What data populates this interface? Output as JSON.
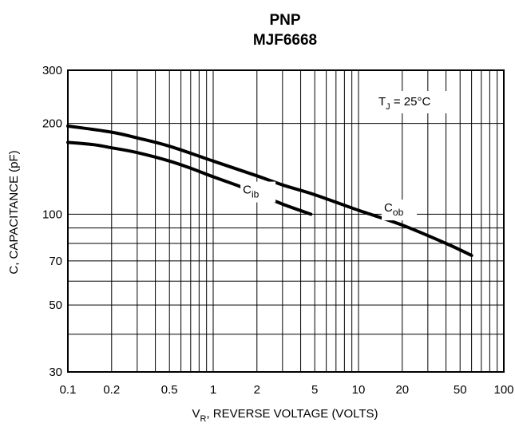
{
  "chart_data": {
    "type": "line",
    "title_lines": [
      "PNP",
      "MJF6668"
    ],
    "xlabel_main": "V",
    "xlabel_sub": "R",
    "xlabel_rest": ", REVERSE VOLTAGE (VOLTS)",
    "ylabel": "C, CAPACITANCE (pF)",
    "xscale": "log",
    "yscale": "log",
    "xlim": [
      0.1,
      100
    ],
    "ylim": [
      30,
      300
    ],
    "grid": true,
    "x_ticks": [
      "0.1",
      "0.2",
      "0.5",
      "1",
      "2",
      "5",
      "10",
      "20",
      "50",
      "100"
    ],
    "y_ticks": [
      "30",
      "50",
      "70",
      "100",
      "200",
      "300"
    ],
    "annotation": {
      "main": "T",
      "sub": "J",
      "rest": " = 25°C"
    },
    "series": [
      {
        "name": "C",
        "name_sub": "ib",
        "x": [
          0.1,
          0.15,
          0.2,
          0.3,
          0.5,
          0.7,
          1,
          1.5,
          2,
          3,
          4.7
        ],
        "y": [
          173,
          170,
          166,
          160,
          150,
          142,
          133,
          124,
          117,
          108,
          100
        ]
      },
      {
        "name": "C",
        "name_sub": "ob",
        "x": [
          0.1,
          0.2,
          0.3,
          0.5,
          1,
          2,
          3,
          5,
          10,
          20,
          40,
          60
        ],
        "y": [
          196,
          187,
          179,
          168,
          150,
          134,
          125,
          116,
          103,
          92,
          80,
          73
        ]
      }
    ]
  }
}
